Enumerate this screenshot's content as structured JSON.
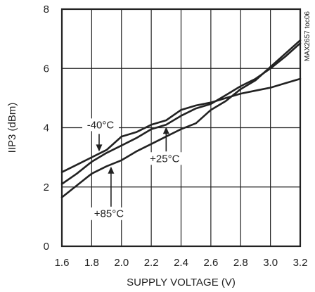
{
  "chart_data": {
    "type": "line",
    "xlabel": "SUPPLY VOLTAGE (V)",
    "ylabel": "IIP3 (dBm)",
    "xlim": [
      1.6,
      3.2
    ],
    "ylim": [
      0,
      8
    ],
    "xticks": [
      "1.6",
      "1.8",
      "2.0",
      "2.2",
      "2.4",
      "2.6",
      "2.8",
      "3.0",
      "3.2"
    ],
    "yticks": [
      "0",
      "2",
      "4",
      "6",
      "8"
    ],
    "grid": true,
    "side_label": "MAX2657 toc06",
    "series": [
      {
        "name": "-40°C",
        "x": [
          1.6,
          1.7,
          1.8,
          1.9,
          2.0,
          2.1,
          2.2,
          2.3,
          2.4,
          2.5,
          2.6,
          2.7,
          2.8,
          2.9,
          3.0,
          3.1,
          3.2
        ],
        "y": [
          2.5,
          2.75,
          3.0,
          3.25,
          3.7,
          3.85,
          4.1,
          4.25,
          4.6,
          4.75,
          4.85,
          5.0,
          5.15,
          5.25,
          5.35,
          5.5,
          5.65
        ]
      },
      {
        "name": "+25°C",
        "x": [
          1.6,
          1.7,
          1.8,
          1.9,
          2.0,
          2.1,
          2.2,
          2.3,
          2.4,
          2.5,
          2.6,
          2.7,
          2.8,
          2.9,
          3.0,
          3.1,
          3.2
        ],
        "y": [
          2.1,
          2.45,
          2.85,
          3.15,
          3.4,
          3.65,
          3.95,
          4.1,
          4.4,
          4.65,
          4.8,
          5.1,
          5.4,
          5.65,
          6.0,
          6.4,
          6.85
        ]
      },
      {
        "name": "+85°C",
        "x": [
          1.6,
          1.7,
          1.8,
          1.9,
          2.0,
          2.1,
          2.2,
          2.3,
          2.4,
          2.5,
          2.6,
          2.7,
          2.8,
          2.9,
          3.0,
          3.1,
          3.2
        ],
        "y": [
          1.65,
          2.05,
          2.45,
          2.7,
          2.9,
          3.2,
          3.45,
          3.7,
          3.95,
          4.15,
          4.6,
          4.9,
          5.3,
          5.6,
          6.05,
          6.5,
          6.95
        ]
      }
    ],
    "annotations": [
      {
        "text": "-40°C",
        "series": "-40°C",
        "arrow_x": 1.85
      },
      {
        "text": "+25°C",
        "series": "+25°C",
        "arrow_x": 2.3
      },
      {
        "text": "+85°C",
        "series": "+85°C",
        "arrow_x": 1.93
      }
    ]
  }
}
